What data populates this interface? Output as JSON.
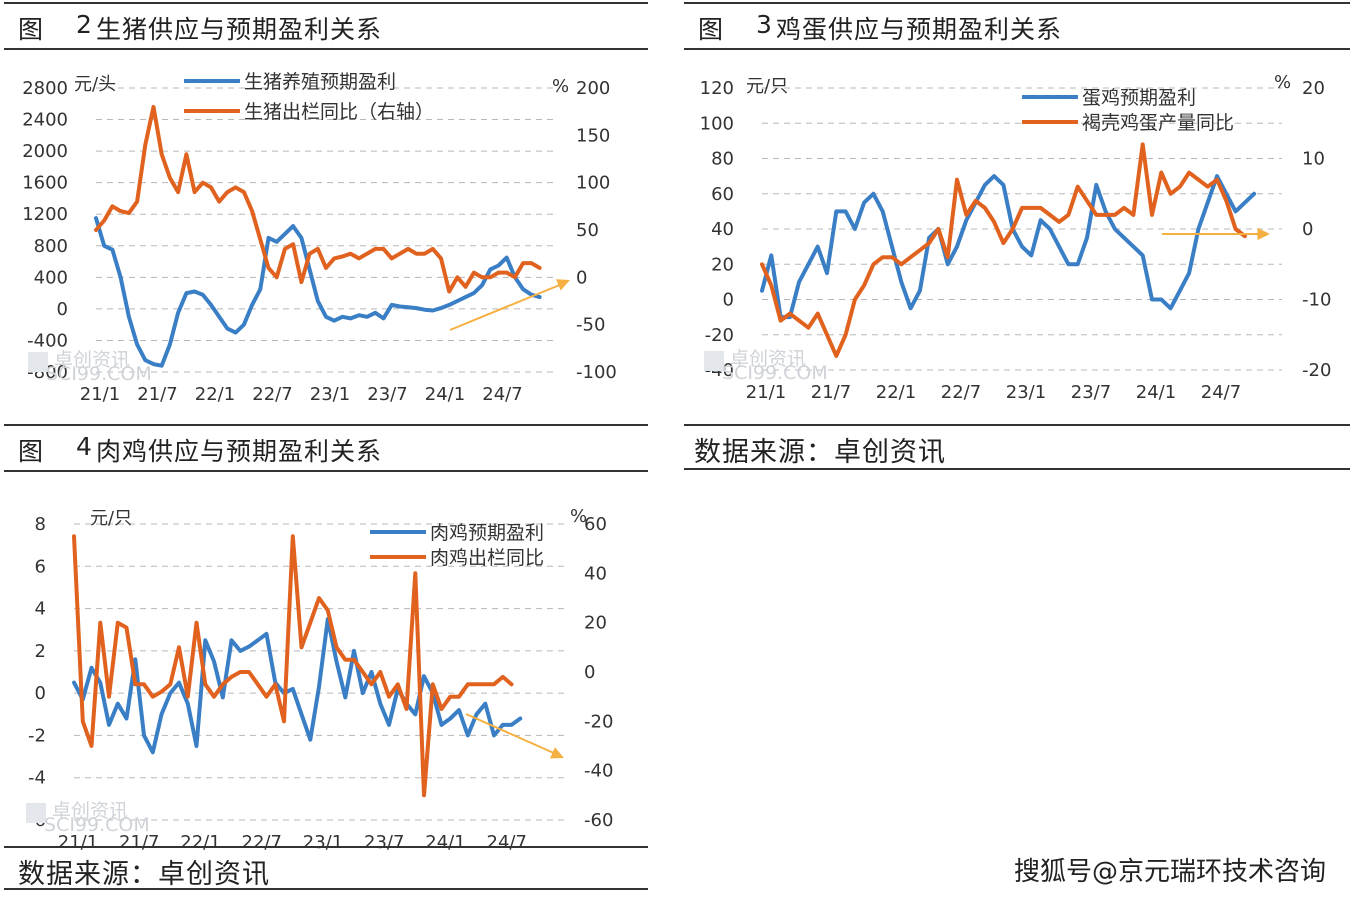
{
  "panels": [
    {
      "fig_label": "图",
      "fig_num": "2",
      "title": "生猪供应与预期盈利关系"
    },
    {
      "fig_label": "图",
      "fig_num": "3",
      "title": "鸡蛋供应与预期盈利关系"
    },
    {
      "fig_label": "图",
      "fig_num": "4",
      "title": "肉鸡供应与预期盈利关系"
    }
  ],
  "sources": {
    "right_source": "数据来源：卓创资讯",
    "bottom_source": "数据来源：卓创资讯"
  },
  "credit": "搜狐号@京元瑞环技术咨询",
  "watermark": {
    "text": "卓创资讯",
    "sub": "SCI99.COM"
  },
  "colors": {
    "blue": "#3a7fc6",
    "orange": "#e0621e",
    "arrow": "#f5b041",
    "grid": "#b8b8b8"
  },
  "chart_data": [
    {
      "type": "line",
      "left_unit": "元/头",
      "right_unit": "%",
      "x_tick_labels": [
        "21/1",
        "21/7",
        "22/1",
        "22/7",
        "23/1",
        "23/7",
        "24/1",
        "24/7"
      ],
      "y_left_ticks": [
        2800,
        2400,
        2000,
        1600,
        1200,
        800,
        400,
        0,
        -400,
        -800
      ],
      "y_right_ticks": [
        200,
        150,
        100,
        50,
        0,
        -50,
        -100
      ],
      "ylim_left": [
        -800,
        2800
      ],
      "ylim_right": [
        -100,
        200
      ],
      "grid": true,
      "legend_position": "top-center",
      "series": [
        {
          "name": "生猪养殖预期盈利",
          "axis": "left",
          "color": "blue",
          "values": [
            1150,
            800,
            750,
            400,
            -100,
            -450,
            -650,
            -700,
            -720,
            -450,
            -50,
            200,
            220,
            180,
            50,
            -100,
            -250,
            -300,
            -200,
            50,
            250,
            900,
            850,
            950,
            1050,
            900,
            500,
            100,
            -100,
            -150,
            -100,
            -120,
            -80,
            -100,
            -50,
            -120,
            50,
            30,
            20,
            10,
            -10,
            -20,
            10,
            50,
            100,
            150,
            200,
            300,
            500,
            550,
            650,
            400,
            250,
            180,
            150
          ]
        },
        {
          "name": "生猪出栏同比（右轴）",
          "axis": "right",
          "color": "orange",
          "values": [
            50,
            60,
            75,
            70,
            68,
            80,
            140,
            180,
            130,
            105,
            90,
            130,
            90,
            100,
            95,
            80,
            90,
            95,
            90,
            70,
            40,
            10,
            0,
            30,
            35,
            -5,
            25,
            30,
            10,
            20,
            22,
            25,
            20,
            25,
            30,
            30,
            20,
            25,
            30,
            25,
            25,
            30,
            20,
            -15,
            0,
            -10,
            5,
            0,
            0,
            5,
            5,
            0,
            15,
            15,
            10
          ]
        }
      ]
    },
    {
      "type": "line",
      "left_unit": "元/只",
      "right_unit": "%",
      "x_tick_labels": [
        "21/1",
        "21/7",
        "22/1",
        "22/7",
        "23/1",
        "23/7",
        "24/1",
        "24/7"
      ],
      "y_left_ticks": [
        120,
        100,
        80,
        60,
        40,
        20,
        0,
        -20,
        -40
      ],
      "y_right_ticks": [
        20,
        10,
        0,
        -10,
        -20
      ],
      "ylim_left": [
        -40,
        120
      ],
      "ylim_right": [
        -20,
        20
      ],
      "grid": true,
      "legend_position": "top-right",
      "series": [
        {
          "name": "蛋鸡预期盈利",
          "axis": "left",
          "color": "blue",
          "values": [
            5,
            25,
            -10,
            -10,
            10,
            20,
            30,
            15,
            50,
            50,
            40,
            55,
            60,
            50,
            30,
            10,
            -5,
            5,
            35,
            40,
            20,
            30,
            45,
            55,
            65,
            70,
            65,
            40,
            30,
            25,
            45,
            40,
            30,
            20,
            20,
            35,
            65,
            50,
            40,
            35,
            30,
            25,
            0,
            0,
            -5,
            5,
            15,
            40,
            55,
            70,
            60,
            50,
            55,
            60
          ]
        },
        {
          "name": "褐壳鸡蛋产量同比",
          "axis": "right",
          "color": "orange",
          "values": [
            -5,
            -8,
            -13,
            -12,
            -13,
            -14,
            -12,
            -15,
            -18,
            -15,
            -10,
            -8,
            -5,
            -4,
            -4,
            -5,
            -4,
            -3,
            -2,
            0,
            -4,
            7,
            2,
            4,
            3,
            1,
            -2,
            0,
            3,
            3,
            3,
            2,
            1,
            2,
            6,
            4,
            2,
            2,
            2,
            3,
            2,
            12,
            2,
            8,
            5,
            6,
            8,
            7,
            6,
            7,
            4,
            0,
            -1
          ]
        }
      ]
    },
    {
      "type": "line",
      "left_unit": "元/只",
      "right_unit": "%",
      "x_tick_labels": [
        "21/1",
        "21/7",
        "22/1",
        "22/7",
        "23/1",
        "23/7",
        "24/1",
        "24/7"
      ],
      "y_left_ticks": [
        8,
        6,
        4,
        2,
        0,
        -2,
        -4,
        -6
      ],
      "y_right_ticks": [
        60,
        40,
        20,
        0,
        -20,
        -40,
        -60
      ],
      "ylim_left": [
        -6,
        8
      ],
      "ylim_right": [
        -60,
        60
      ],
      "grid": true,
      "legend_position": "top-right",
      "series": [
        {
          "name": "肉鸡预期盈利",
          "axis": "left",
          "color": "blue",
          "values": [
            0.5,
            -0.3,
            1.2,
            0.5,
            -1.5,
            -0.5,
            -1.2,
            1.6,
            -2.0,
            -2.8,
            -1.0,
            0,
            0.5,
            -0.5,
            -2.5,
            2.5,
            1.5,
            -0.2,
            2.5,
            2.0,
            2.2,
            2.5,
            2.8,
            0.5,
            0,
            0.2,
            -1.0,
            -2.2,
            0.3,
            3.5,
            1.5,
            -0.2,
            2.0,
            0,
            1.0,
            -0.5,
            -1.5,
            0.2,
            -0.5,
            -1.0,
            0.8,
            0.0,
            -1.5,
            -1.2,
            -0.8,
            -2.0,
            -1.0,
            -0.5,
            -2.0,
            -1.5,
            -1.5,
            -1.2
          ]
        },
        {
          "name": "肉鸡出栏同比",
          "axis": "right",
          "color": "orange",
          "values": [
            55,
            -20,
            -30,
            20,
            -10,
            20,
            18,
            -5,
            -5,
            -10,
            -8,
            -5,
            10,
            -10,
            20,
            -5,
            -10,
            -5,
            -2,
            0,
            0,
            -5,
            -10,
            -5,
            -20,
            55,
            10,
            20,
            30,
            25,
            10,
            5,
            5,
            0,
            -5,
            0,
            -10,
            -5,
            -15,
            40,
            -50,
            -5,
            -15,
            -10,
            -10,
            -5,
            -5,
            -5,
            -5,
            -2,
            -5
          ]
        }
      ]
    }
  ]
}
